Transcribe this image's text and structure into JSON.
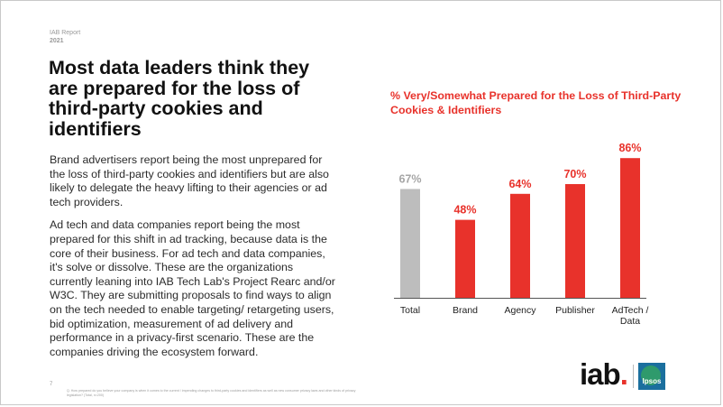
{
  "report": {
    "label": "IAB Report",
    "year": "2021"
  },
  "headline": "Most data leaders think they are prepared for the loss of third-party cookies and identifiers",
  "body": {
    "paragraph1": "Brand advertisers report being the most unprepared for the loss of third-party cookies and identifiers but are also likely to delegate the heavy lifting to their agencies or ad tech providers.",
    "paragraph2": "Ad tech and data companies report being the most prepared for this shift in ad tracking, because data is the core of their business. For ad tech and data companies, it's solve or dissolve. These are the organizations currently leaning into IAB Tech Lab's Project Rearc and/or W3C. They are submitting proposals to find ways to align on the tech needed to enable targeting/ retargeting users, bid optimization, measurement of ad delivery and performance in a privacy-first scenario. These are the companies driving the ecosystem forward."
  },
  "page_number": "7",
  "footnote": "Q. How prepared do you believe your company is when it comes to the current / impending changes to third-party cookies and identifiers as well as new consumer privacy laws and other kinds of privacy legislation? (Total, n=200)",
  "logos": {
    "iab": "iab",
    "iab_dot": ".",
    "ipsos": "Ipsos"
  },
  "colors": {
    "accent": "#e8322b",
    "muted": "#bdbdbd",
    "text": "#111111"
  },
  "chart_data": {
    "type": "bar",
    "title": "% Very/Somewhat Prepared for the Loss of Third-Party Cookies & Identifiers",
    "categories": [
      "Total",
      "Brand",
      "Agency",
      "Publisher",
      "AdTech / Data"
    ],
    "values": [
      67,
      48,
      64,
      70,
      86
    ],
    "labels": [
      "67%",
      "48%",
      "64%",
      "70%",
      "86%"
    ],
    "bar_colors": [
      "#bdbdbd",
      "#e8322b",
      "#e8322b",
      "#e8322b",
      "#e8322b"
    ],
    "label_colors": [
      "#a6a6a6",
      "#e8322b",
      "#e8322b",
      "#e8322b",
      "#e8322b"
    ],
    "ylim": [
      0,
      100
    ],
    "xlabel": "",
    "ylabel": "",
    "grid": false,
    "legend": "none"
  }
}
